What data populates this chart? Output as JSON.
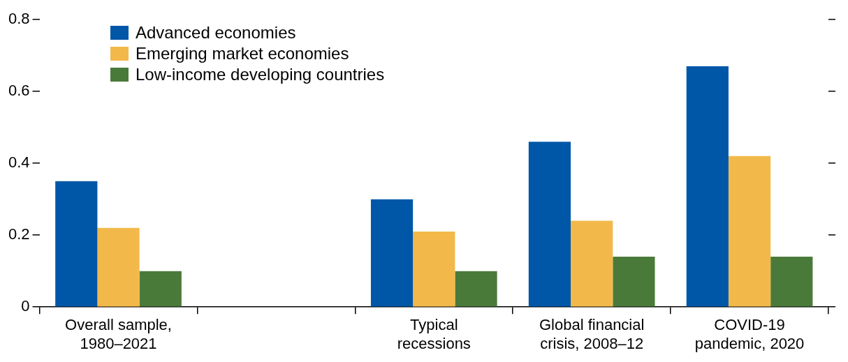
{
  "chart_data": {
    "type": "bar",
    "categories": [
      "Overall sample, 1980–2021",
      null,
      "Typical recessions",
      "Global financial crisis, 2008–12",
      "COVID-19 pandemic, 2020"
    ],
    "series": [
      {
        "name": "Advanced economies",
        "color": "#0057a8",
        "values": [
          0.35,
          null,
          0.3,
          0.46,
          0.67
        ]
      },
      {
        "name": "Emerging market economies",
        "color": "#f2b94a",
        "values": [
          0.22,
          null,
          0.21,
          0.24,
          0.42
        ]
      },
      {
        "name": "Low-income developing countries",
        "color": "#4a7a3a",
        "values": [
          0.1,
          null,
          0.1,
          0.14,
          0.14
        ]
      }
    ],
    "ylim": [
      0,
      0.8
    ],
    "yticks": [
      0,
      0.2,
      0.4,
      0.6,
      0.8
    ],
    "grid": false,
    "legend": "top left"
  }
}
